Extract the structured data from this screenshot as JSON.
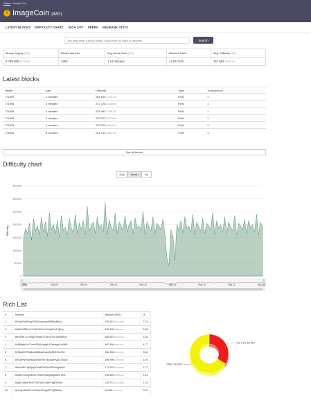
{
  "breadcrumb": {
    "home": "Coins",
    "sep": "/",
    "current": "ImageCoin"
  },
  "coin": {
    "name": "ImageCoin",
    "ticker": "(IMG)",
    "logo_letter": "I"
  },
  "nav": [
    "LATEST BLOCKS",
    "DIFFICULTY CHART",
    "RICH LIST",
    "PEERS",
    "WIKIRANK STATS"
  ],
  "search": {
    "placeholder": "You may enter a block height, block hash, tx hash or address",
    "button": "Search"
  },
  "stats": [
    {
      "label": "Money Supply",
      "unit": "(IMG)",
      "value": "9 759 660.",
      "value_small": "47749428"
    },
    {
      "label": "Blocks last 24h",
      "unit": "",
      "value": "1260",
      "value_small": ""
    },
    {
      "label": "Avg. Block Time",
      "unit": "(24h)",
      "value": "1.14 minutes",
      "value_small": ""
    },
    {
      "label": "Network Hash",
      "unit": "",
      "value": "14.05 TH/s",
      "value_small": ""
    },
    {
      "label": "Avg. Difficulty",
      "unit": "(24h)",
      "value": "157 962.",
      "value_small": "00145144"
    }
  ],
  "latest_blocks": {
    "title": "Latest blocks",
    "headers": [
      "Height",
      "Age",
      "Difficulty",
      "Type",
      "Transactions"
    ],
    "rows": [
      {
        "height": "771597",
        "age": "1 minutes",
        "diff": "268 615.",
        "diff_small": "77431176",
        "type": "PoW",
        "tx": "1"
      },
      {
        "height": "771596",
        "age": "2 minutes",
        "diff": "227 728.",
        "diff_small": "91466094",
        "type": "PoW",
        "tx": "1"
      },
      {
        "height": "771595",
        "age": "2 minutes",
        "diff": "235 493.",
        "diff_small": "71183739",
        "type": "PoW",
        "tx": "1"
      },
      {
        "height": "771594",
        "age": "4 minutes",
        "diff": "232 072.",
        "diff_small": "81470006",
        "type": "PoW",
        "tx": "1"
      },
      {
        "height": "771593",
        "age": "4 minutes",
        "diff": "229 570.",
        "diff_small": "26011612",
        "type": "PoW",
        "tx": "1"
      },
      {
        "height": "771592",
        "age": "5 minutes",
        "diff": "221 714.",
        "diff_small": "54616762",
        "type": "PoW",
        "tx": "1"
      }
    ],
    "see_all": "See all blocks"
  },
  "difficulty": {
    "title": "Difficulty chart",
    "ranges": [
      "Day",
      "Month",
      "All"
    ],
    "active_range": "Month"
  },
  "chart_data": [
    {
      "type": "area",
      "title": "",
      "xlabel": "",
      "ylabel": "Difficulty",
      "ylim": [
        0,
        350000
      ],
      "yticks": [
        "0",
        "50,000",
        "100,000",
        "150,000",
        "200,000",
        "250,000",
        "300,000",
        "350,000"
      ],
      "xticks": [
        "May",
        "May 04",
        "May 07",
        "May 10",
        "May 13",
        "May 16",
        "May 19",
        "May 22",
        "May 25"
      ],
      "grid": true,
      "color": "#7fa992",
      "series": [
        {
          "values": [
            150000,
            185000,
            165000,
            205000,
            140000,
            220000,
            175000,
            195000,
            160000,
            230000,
            170000,
            210000,
            155000,
            245000,
            180000,
            200000,
            165000,
            215000,
            150000,
            235000,
            175000,
            190000,
            160000,
            225000,
            185000,
            170000,
            240000,
            165000,
            205000,
            180000,
            215000,
            160000,
            270000,
            175000,
            195000,
            210000,
            165000,
            230000,
            185000,
            200000,
            170000,
            285000,
            160000,
            220000,
            190000,
            175000,
            245000,
            165000,
            210000,
            195000,
            180000,
            235000,
            170000,
            200000,
            215000,
            165000,
            225000,
            185000,
            195000,
            175000,
            250000,
            160000,
            210000,
            190000,
            175000,
            230000,
            165000,
            205000,
            195000,
            180000,
            220000,
            160000,
            70000,
            40000,
            180000,
            155000,
            60000,
            200000,
            175000,
            215000,
            165000,
            230000,
            185000,
            195000,
            170000,
            240000,
            160000,
            210000,
            190000,
            175000,
            225000,
            165000,
            205000,
            195000,
            180000,
            245000,
            160000,
            215000,
            185000,
            200000,
            170000,
            230000,
            165000,
            210000,
            190000,
            175000,
            235000,
            160000,
            205000,
            195000,
            180000,
            220000,
            165000,
            215000,
            185000,
            200000,
            170000,
            240000,
            160000,
            210000,
            190000
          ]
        }
      ]
    },
    {
      "type": "pie",
      "title": "",
      "slices": [
        {
          "label": "Top 1-10",
          "value": 33.76,
          "text": "Top 1-10: 33.76%",
          "color": "#ee1c1c"
        },
        {
          "label": "Other",
          "value": 66.24,
          "text": "Other: 66.24%",
          "color": "#f2f20a"
        }
      ]
    }
  ],
  "rich_list": {
    "title": "Rich List",
    "headers": [
      "#",
      "Address",
      "Balance (IMG)",
      "%"
    ],
    "rows": [
      {
        "rank": "1",
        "address": "MFxyW3z8KbqGTbtDJownan699RvcBk1y",
        "bal": "702 821.",
        "bal_small": "46247489",
        "pct": "7.24"
      },
      {
        "rank": "2",
        "address": "MaBL3LSBLrCYrHCvZKehYr2sqPKcFnjPnp",
        "bal": "549 495.",
        "bal_small": "98850824",
        "pct": "5.66"
      },
      {
        "rank": "3",
        "address": "MeXRvfLTLPXSgY19dnvT7AKhJYn13kPMRUY",
        "bal": "489 823.",
        "bal_small": "06160214",
        "pct": "5.04"
      },
      {
        "rank": "4",
        "address": "Md5f8gfsXoYTmmSMUruyhgK1Vdrmgn2oxWM",
        "bal": "462 466.",
        "bal_small": "99673076",
        "pct": "4.77"
      },
      {
        "rank": "5",
        "address": "MrRjA4hST5sBsw55BmaI1zsaSyEE5T1x931",
        "bal": "352 996.",
        "bal_small": "99663643",
        "pct": "3.64"
      },
      {
        "rank": "6",
        "address": "MYQxPqYoA9w3wJwSNXh7duAcpmyQXT5g7p",
        "bal": "186 996.",
        "bal_small": "11550000",
        "pct": "1.93"
      },
      {
        "rank": "7",
        "address": "MkwrNRGJlyRpqWYeMErwDcr53RoVfghMW",
        "bal": "171 576.",
        "bal_small": "00000000",
        "pct": "1.77"
      },
      {
        "rank": "8",
        "address": "Mc3237vSug94x5YLSSMFwsxjZ56RamFVDc",
        "bal": "136 459.",
        "bal_small": "05526610",
        "pct": "1.41"
      },
      {
        "rank": "9",
        "address": "MqJ8C65eKYe47T59YnKKJ8HrYkgEr05Kh",
        "bal": "128 712.",
        "bal_small": "71014969",
        "pct": "1.33"
      },
      {
        "rank": "10",
        "address": "MnFhycd8wDYnr7NHm1EogUZZYjR5tzfbz",
        "bal": "93 842.",
        "bal_small": "46271030",
        "pct": "0.97"
      }
    ]
  }
}
